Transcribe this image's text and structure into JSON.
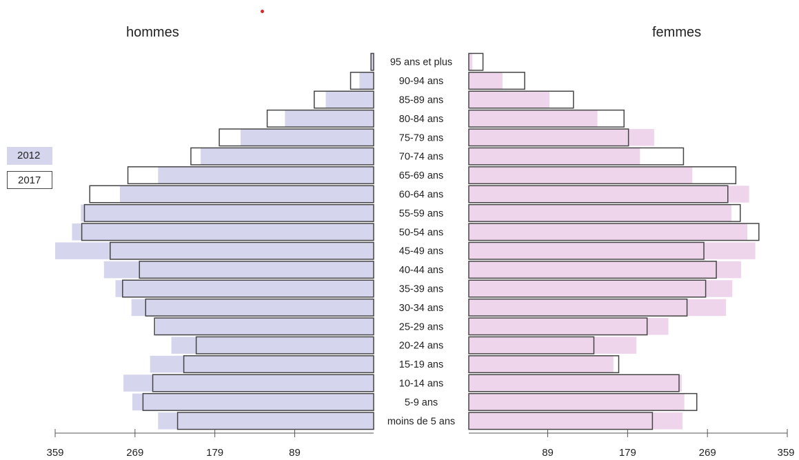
{
  "chart_data": {
    "type": "bar",
    "orientation": "horizontal",
    "left_label": "hommes",
    "right_label": "femmes",
    "categories": [
      "95 ans et plus",
      "90-94 ans",
      "85-89 ans",
      "80-84 ans",
      "75-79 ans",
      "70-74 ans",
      "65-69 ans",
      "60-64 ans",
      "55-59 ans",
      "50-54 ans",
      "45-49 ans",
      "40-44 ans",
      "35-39 ans",
      "30-34 ans",
      "25-29 ans",
      "20-24 ans",
      "15-19 ans",
      "10-14 ans",
      "5-9 ans",
      "moins de 5 ans"
    ],
    "series": [
      {
        "name": "2012",
        "style": "filled",
        "hommes": [
          3,
          16,
          54,
          100,
          150,
          195,
          243,
          286,
          330,
          340,
          359,
          304,
          291,
          273,
          246,
          228,
          252,
          282,
          272,
          243
        ],
        "femmes": [
          4,
          38,
          91,
          145,
          209,
          193,
          252,
          316,
          296,
          314,
          323,
          307,
          297,
          290,
          225,
          189,
          163,
          240,
          243,
          241
        ]
      },
      {
        "name": "2017",
        "style": "outline",
        "hommes": [
          3,
          26,
          67,
          120,
          174,
          206,
          277,
          320,
          326,
          329,
          297,
          264,
          283,
          257,
          247,
          200,
          214,
          249,
          260,
          221
        ]
      },
      {
        "name": "2017",
        "style": "outline",
        "femmes": [
          16,
          63,
          118,
          175,
          180,
          242,
          301,
          292,
          306,
          327,
          265,
          279,
          267,
          246,
          201,
          141,
          169,
          237,
          257,
          207
        ]
      }
    ],
    "legend": [
      "2012",
      "2017"
    ],
    "legend_position": "left",
    "x_ticks": [
      359,
      269,
      179,
      89
    ],
    "xlim": [
      0,
      359
    ],
    "colors": {
      "hommes_2012": "#d5d5ee",
      "femmes_2012": "#efd5ec",
      "outline_2017": "#444444",
      "axis": "#555555"
    }
  }
}
